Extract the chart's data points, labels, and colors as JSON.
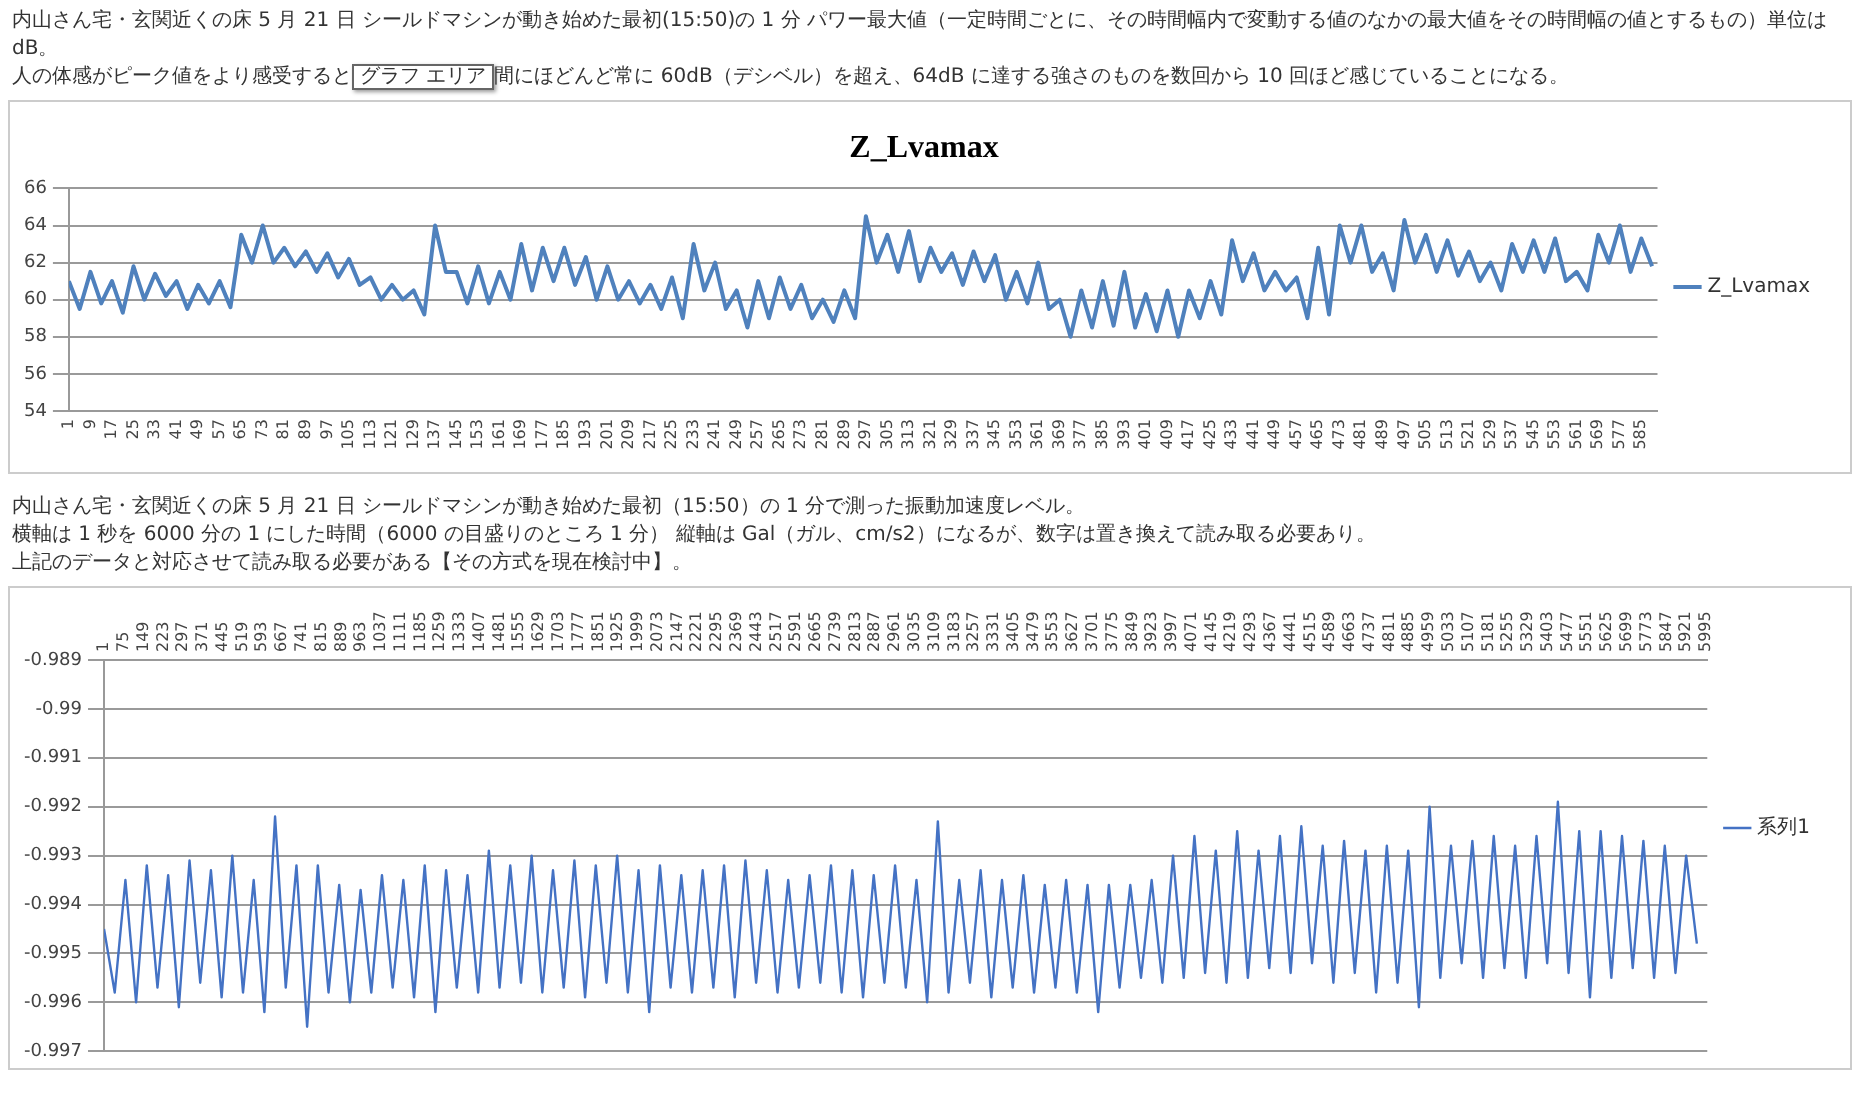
{
  "chart_data": [
    {
      "type": "line",
      "title": "Z_Lvamax",
      "annotations": [
        "内山さん宅・玄関近くの床 5 月 21 日 シールドマシンが動き始めた最初(15:50)の 1 分 パワー最大値（一定時間ごとに、その時間幅内で変動する値のなかの最大値をその時間幅の値とするもの）単位は dB。",
        "人の体感がピーク値をより感受すると",
        "グラフ エリア",
        "間にほどんど常に 60dB（デシベル）を超え、64dB に達する強さのものを数回から 10 回ほど感じていることになる。"
      ],
      "x": [
        1,
        5,
        9,
        13,
        17,
        21,
        25,
        29,
        33,
        37,
        41,
        45,
        49,
        53,
        57,
        61,
        65,
        69,
        73,
        77,
        81,
        85,
        89,
        93,
        97,
        101,
        105,
        109,
        113,
        117,
        121,
        125,
        129,
        133,
        137,
        141,
        145,
        149,
        153,
        157,
        161,
        165,
        169,
        173,
        177,
        181,
        185,
        189,
        193,
        197,
        201,
        205,
        209,
        213,
        217,
        221,
        225,
        229,
        233,
        237,
        241,
        245,
        249,
        253,
        257,
        261,
        265,
        269,
        273,
        277,
        281,
        285,
        289,
        293,
        297,
        301,
        305,
        309,
        313,
        317,
        321,
        325,
        329,
        333,
        337,
        341,
        345,
        349,
        353,
        357,
        361,
        365,
        369,
        373,
        377,
        381,
        385,
        389,
        393,
        397,
        401,
        405,
        409,
        413,
        417,
        421,
        425,
        429,
        433,
        437,
        441,
        445,
        449,
        453,
        457,
        461,
        465,
        469,
        473,
        477,
        481,
        485,
        489,
        493,
        497,
        501,
        505,
        509,
        513,
        517,
        521,
        525,
        529,
        533,
        537,
        541,
        545,
        549,
        553,
        557,
        561,
        565,
        569,
        573,
        577,
        581,
        585,
        589
      ],
      "series": [
        {
          "name": "Z_Lvamax",
          "color": "#4f81bd",
          "values": [
            61.0,
            59.5,
            61.5,
            59.8,
            61.0,
            59.3,
            61.8,
            60.0,
            61.4,
            60.2,
            61.0,
            59.5,
            60.8,
            59.8,
            61.0,
            59.6,
            63.5,
            62.0,
            64.0,
            62.0,
            62.8,
            61.8,
            62.6,
            61.5,
            62.5,
            61.2,
            62.2,
            60.8,
            61.2,
            60.0,
            60.8,
            60.0,
            60.5,
            59.2,
            64.0,
            61.5,
            61.5,
            59.8,
            61.8,
            59.8,
            61.5,
            60.0,
            63.0,
            60.5,
            62.8,
            61.0,
            62.8,
            60.8,
            62.3,
            60.0,
            61.8,
            60.0,
            61.0,
            59.8,
            60.8,
            59.5,
            61.2,
            59.0,
            63.0,
            60.5,
            62.0,
            59.5,
            60.5,
            58.5,
            61.0,
            59.0,
            61.2,
            59.5,
            60.8,
            59.0,
            60.0,
            58.8,
            60.5,
            59.0,
            64.5,
            62.0,
            63.5,
            61.5,
            63.7,
            61.0,
            62.8,
            61.5,
            62.5,
            60.8,
            62.6,
            61.0,
            62.4,
            60.0,
            61.5,
            59.8,
            62.0,
            59.5,
            60.0,
            58.0,
            60.5,
            58.5,
            61.0,
            58.6,
            61.5,
            58.5,
            60.3,
            58.3,
            60.5,
            58.0,
            60.5,
            59.0,
            61.0,
            59.2,
            63.2,
            61.0,
            62.5,
            60.5,
            61.5,
            60.5,
            61.2,
            59.0,
            62.8,
            59.2,
            64.0,
            62.0,
            64.0,
            61.5,
            62.5,
            60.5,
            64.3,
            62.0,
            63.5,
            61.5,
            63.2,
            61.3,
            62.6,
            61.0,
            62.0,
            60.5,
            63.0,
            61.5,
            63.2,
            61.5,
            63.3,
            61.0,
            61.5,
            60.5,
            63.5,
            62.0,
            64.0,
            61.5,
            63.3,
            61.8
          ]
        }
      ],
      "xlim": [
        1,
        591
      ],
      "xticks": [
        1,
        9,
        17,
        25,
        33,
        41,
        49,
        57,
        65,
        73,
        81,
        89,
        97,
        105,
        113,
        121,
        129,
        137,
        145,
        153,
        161,
        169,
        177,
        185,
        193,
        201,
        209,
        217,
        225,
        233,
        241,
        249,
        257,
        265,
        273,
        281,
        289,
        297,
        305,
        313,
        321,
        329,
        337,
        345,
        353,
        361,
        369,
        377,
        385,
        393,
        401,
        409,
        417,
        425,
        433,
        441,
        449,
        457,
        465,
        473,
        481,
        489,
        497,
        505,
        513,
        521,
        529,
        537,
        545,
        553,
        561,
        569,
        577,
        585
      ],
      "ylim": [
        54,
        66
      ],
      "yticks": [
        54,
        56,
        58,
        60,
        62,
        64,
        66
      ],
      "grid": "y",
      "legend": "right",
      "marker": "none",
      "line_style": "solid"
    },
    {
      "type": "line",
      "annotations": [
        "内山さん宅・玄関近くの床 5 月 21 日 シールドマシンが動き始めた最初（15:50）の 1 分で測った振動加速度レベル。",
        "横軸は 1 秒を 6000 分の 1 にした時間（6000 の目盛りのところ 1 分） 縦軸は Gal（ガル、cm/s2）になるが、数字は置き換えて読み取る必要あり。",
        "上記のデータと対応させて読み取る必要がある【その方式を現在検討中】。"
      ],
      "x": [
        1,
        41,
        81,
        121,
        161,
        201,
        241,
        281,
        321,
        361,
        401,
        441,
        481,
        521,
        561,
        601,
        641,
        681,
        721,
        761,
        801,
        841,
        881,
        921,
        961,
        1001,
        1041,
        1081,
        1121,
        1161,
        1201,
        1241,
        1281,
        1321,
        1361,
        1401,
        1441,
        1481,
        1521,
        1561,
        1601,
        1641,
        1681,
        1721,
        1761,
        1801,
        1841,
        1881,
        1921,
        1961,
        2001,
        2041,
        2081,
        2121,
        2161,
        2201,
        2241,
        2281,
        2321,
        2361,
        2401,
        2441,
        2481,
        2521,
        2561,
        2601,
        2641,
        2681,
        2721,
        2761,
        2801,
        2841,
        2881,
        2921,
        2961,
        3001,
        3041,
        3081,
        3121,
        3161,
        3201,
        3241,
        3281,
        3321,
        3361,
        3401,
        3441,
        3481,
        3521,
        3561,
        3601,
        3641,
        3681,
        3721,
        3761,
        3801,
        3841,
        3881,
        3921,
        3961,
        4001,
        4041,
        4081,
        4121,
        4161,
        4201,
        4241,
        4281,
        4321,
        4361,
        4401,
        4441,
        4481,
        4521,
        4561,
        4601,
        4641,
        4681,
        4721,
        4761,
        4801,
        4841,
        4881,
        4921,
        4961,
        5001,
        5041,
        5081,
        5121,
        5161,
        5201,
        5241,
        5281,
        5321,
        5361,
        5401,
        5441,
        5481,
        5521,
        5561,
        5601,
        5641,
        5681,
        5721,
        5761,
        5801,
        5841,
        5881,
        5921,
        5961
      ],
      "series": [
        {
          "name": "系列1",
          "color": "#4472c4",
          "values": [
            -0.9945,
            -0.9958,
            -0.9935,
            -0.996,
            -0.9932,
            -0.9957,
            -0.9934,
            -0.9961,
            -0.9931,
            -0.9956,
            -0.9933,
            -0.9959,
            -0.993,
            -0.9958,
            -0.9935,
            -0.9962,
            -0.9922,
            -0.9957,
            -0.9932,
            -0.9965,
            -0.9932,
            -0.9958,
            -0.9936,
            -0.996,
            -0.9937,
            -0.9958,
            -0.9934,
            -0.9957,
            -0.9935,
            -0.9959,
            -0.9932,
            -0.9962,
            -0.9933,
            -0.9957,
            -0.9934,
            -0.9958,
            -0.9929,
            -0.9957,
            -0.9932,
            -0.9956,
            -0.993,
            -0.9958,
            -0.9933,
            -0.9957,
            -0.9931,
            -0.9959,
            -0.9932,
            -0.9956,
            -0.993,
            -0.9958,
            -0.9933,
            -0.9962,
            -0.9932,
            -0.9957,
            -0.9934,
            -0.9958,
            -0.9933,
            -0.9957,
            -0.9932,
            -0.9959,
            -0.9931,
            -0.9956,
            -0.9933,
            -0.9958,
            -0.9935,
            -0.9957,
            -0.9934,
            -0.9956,
            -0.9932,
            -0.9958,
            -0.9933,
            -0.9959,
            -0.9934,
            -0.9956,
            -0.9932,
            -0.9957,
            -0.9935,
            -0.996,
            -0.9923,
            -0.9958,
            -0.9935,
            -0.9956,
            -0.9933,
            -0.9959,
            -0.9935,
            -0.9957,
            -0.9934,
            -0.9958,
            -0.9936,
            -0.9957,
            -0.9935,
            -0.9958,
            -0.9936,
            -0.9962,
            -0.9936,
            -0.9957,
            -0.9936,
            -0.9955,
            -0.9935,
            -0.9956,
            -0.993,
            -0.9955,
            -0.9926,
            -0.9954,
            -0.9929,
            -0.9956,
            -0.9925,
            -0.9955,
            -0.9929,
            -0.9953,
            -0.9926,
            -0.9954,
            -0.9924,
            -0.9952,
            -0.9928,
            -0.9956,
            -0.9927,
            -0.9954,
            -0.9929,
            -0.9958,
            -0.9928,
            -0.9956,
            -0.9929,
            -0.9961,
            -0.992,
            -0.9955,
            -0.9928,
            -0.9952,
            -0.9927,
            -0.9955,
            -0.9926,
            -0.9953,
            -0.9928,
            -0.9955,
            -0.9926,
            -0.9952,
            -0.9919,
            -0.9954,
            -0.9925,
            -0.9959,
            -0.9925,
            -0.9955,
            -0.9926,
            -0.9953,
            -0.9927,
            -0.9955,
            -0.9928,
            -0.9954,
            -0.993,
            -0.9948
          ]
        }
      ],
      "xlim": [
        1,
        6000
      ],
      "xticks": [
        1,
        75,
        149,
        223,
        297,
        371,
        445,
        519,
        593,
        667,
        741,
        815,
        889,
        963,
        1037,
        1111,
        1185,
        1259,
        1333,
        1407,
        1481,
        1555,
        1629,
        1703,
        1777,
        1851,
        1925,
        1999,
        2073,
        2147,
        2221,
        2295,
        2369,
        2443,
        2517,
        2591,
        2665,
        2739,
        2813,
        2887,
        2961,
        3035,
        3109,
        3183,
        3257,
        3331,
        3405,
        3479,
        3553,
        3627,
        3701,
        3775,
        3849,
        3923,
        3997,
        4071,
        4145,
        4219,
        4293,
        4367,
        4441,
        4515,
        4589,
        4663,
        4737,
        4811,
        4885,
        4959,
        5033,
        5107,
        5181,
        5255,
        5329,
        5403,
        5477,
        5551,
        5625,
        5699,
        5773,
        5847,
        5921,
        5995
      ],
      "ylim": [
        -0.997,
        -0.989
      ],
      "yticks": [
        -0.997,
        -0.996,
        -0.995,
        -0.994,
        -0.993,
        -0.992,
        -0.991,
        -0.99,
        -0.989
      ],
      "grid": "y",
      "legend": "right",
      "marker": "none",
      "line_style": "solid"
    }
  ]
}
